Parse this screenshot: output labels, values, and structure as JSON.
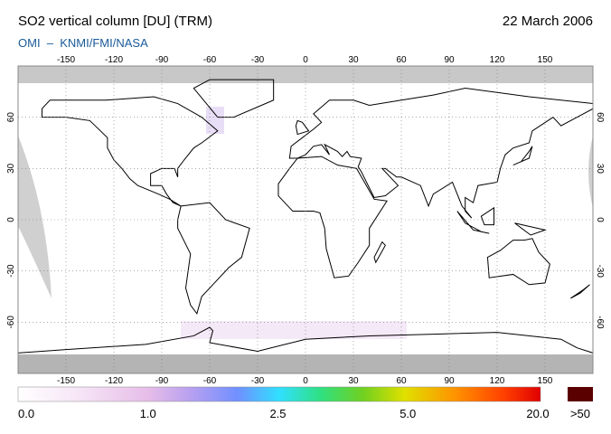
{
  "header": {
    "title": "SO2 vertical column [DU] (TRM)",
    "date": "22 March 2006",
    "subtitle": "OMI  –  KNMI/FMI/NASA"
  },
  "map": {
    "lon_ticks": [
      -150,
      -120,
      -90,
      -60,
      -30,
      0,
      30,
      60,
      90,
      120,
      150
    ],
    "lat_ticks": [
      60,
      30,
      0,
      -30,
      -60
    ]
  },
  "colorbar": {
    "labels": [
      "0.0",
      "1.0",
      "2.5",
      "5.0",
      "20.0"
    ],
    "overflow_label": ">50"
  }
}
